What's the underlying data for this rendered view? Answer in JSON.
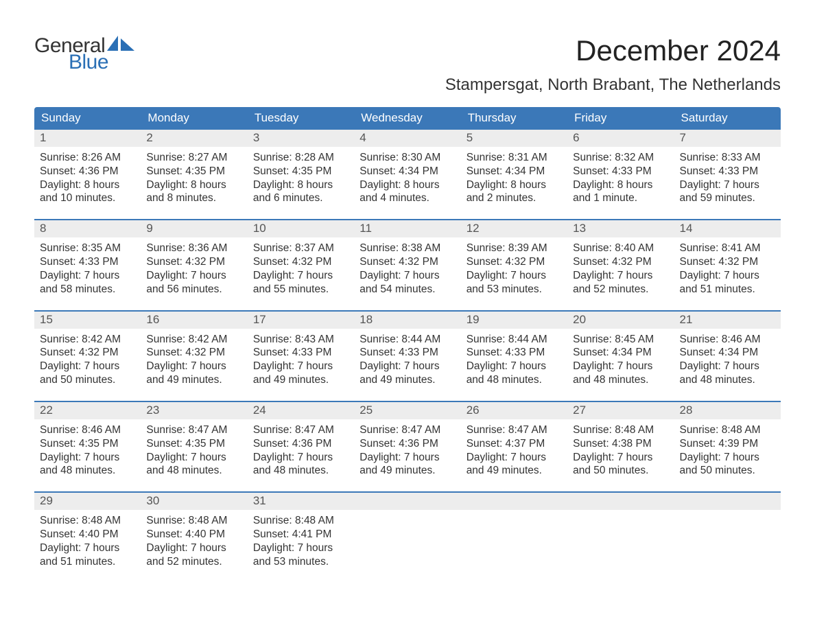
{
  "logo": {
    "text1": "General",
    "text2": "Blue",
    "shape_color": "#2a6fb5"
  },
  "title": "December 2024",
  "location": "Stampersgat, North Brabant, The Netherlands",
  "colors": {
    "header_bg": "#3b78b8",
    "header_text": "#ffffff",
    "daynum_bg": "#ededed",
    "week_divider": "#3b78b8",
    "body_text": "#333333",
    "logo_blue": "#2a6fb5"
  },
  "day_names": [
    "Sunday",
    "Monday",
    "Tuesday",
    "Wednesday",
    "Thursday",
    "Friday",
    "Saturday"
  ],
  "weeks": [
    [
      {
        "n": "1",
        "sunrise": "Sunrise: 8:26 AM",
        "sunset": "Sunset: 4:36 PM",
        "dl1": "Daylight: 8 hours",
        "dl2": "and 10 minutes."
      },
      {
        "n": "2",
        "sunrise": "Sunrise: 8:27 AM",
        "sunset": "Sunset: 4:35 PM",
        "dl1": "Daylight: 8 hours",
        "dl2": "and 8 minutes."
      },
      {
        "n": "3",
        "sunrise": "Sunrise: 8:28 AM",
        "sunset": "Sunset: 4:35 PM",
        "dl1": "Daylight: 8 hours",
        "dl2": "and 6 minutes."
      },
      {
        "n": "4",
        "sunrise": "Sunrise: 8:30 AM",
        "sunset": "Sunset: 4:34 PM",
        "dl1": "Daylight: 8 hours",
        "dl2": "and 4 minutes."
      },
      {
        "n": "5",
        "sunrise": "Sunrise: 8:31 AM",
        "sunset": "Sunset: 4:34 PM",
        "dl1": "Daylight: 8 hours",
        "dl2": "and 2 minutes."
      },
      {
        "n": "6",
        "sunrise": "Sunrise: 8:32 AM",
        "sunset": "Sunset: 4:33 PM",
        "dl1": "Daylight: 8 hours",
        "dl2": "and 1 minute."
      },
      {
        "n": "7",
        "sunrise": "Sunrise: 8:33 AM",
        "sunset": "Sunset: 4:33 PM",
        "dl1": "Daylight: 7 hours",
        "dl2": "and 59 minutes."
      }
    ],
    [
      {
        "n": "8",
        "sunrise": "Sunrise: 8:35 AM",
        "sunset": "Sunset: 4:33 PM",
        "dl1": "Daylight: 7 hours",
        "dl2": "and 58 minutes."
      },
      {
        "n": "9",
        "sunrise": "Sunrise: 8:36 AM",
        "sunset": "Sunset: 4:32 PM",
        "dl1": "Daylight: 7 hours",
        "dl2": "and 56 minutes."
      },
      {
        "n": "10",
        "sunrise": "Sunrise: 8:37 AM",
        "sunset": "Sunset: 4:32 PM",
        "dl1": "Daylight: 7 hours",
        "dl2": "and 55 minutes."
      },
      {
        "n": "11",
        "sunrise": "Sunrise: 8:38 AM",
        "sunset": "Sunset: 4:32 PM",
        "dl1": "Daylight: 7 hours",
        "dl2": "and 54 minutes."
      },
      {
        "n": "12",
        "sunrise": "Sunrise: 8:39 AM",
        "sunset": "Sunset: 4:32 PM",
        "dl1": "Daylight: 7 hours",
        "dl2": "and 53 minutes."
      },
      {
        "n": "13",
        "sunrise": "Sunrise: 8:40 AM",
        "sunset": "Sunset: 4:32 PM",
        "dl1": "Daylight: 7 hours",
        "dl2": "and 52 minutes."
      },
      {
        "n": "14",
        "sunrise": "Sunrise: 8:41 AM",
        "sunset": "Sunset: 4:32 PM",
        "dl1": "Daylight: 7 hours",
        "dl2": "and 51 minutes."
      }
    ],
    [
      {
        "n": "15",
        "sunrise": "Sunrise: 8:42 AM",
        "sunset": "Sunset: 4:32 PM",
        "dl1": "Daylight: 7 hours",
        "dl2": "and 50 minutes."
      },
      {
        "n": "16",
        "sunrise": "Sunrise: 8:42 AM",
        "sunset": "Sunset: 4:32 PM",
        "dl1": "Daylight: 7 hours",
        "dl2": "and 49 minutes."
      },
      {
        "n": "17",
        "sunrise": "Sunrise: 8:43 AM",
        "sunset": "Sunset: 4:33 PM",
        "dl1": "Daylight: 7 hours",
        "dl2": "and 49 minutes."
      },
      {
        "n": "18",
        "sunrise": "Sunrise: 8:44 AM",
        "sunset": "Sunset: 4:33 PM",
        "dl1": "Daylight: 7 hours",
        "dl2": "and 49 minutes."
      },
      {
        "n": "19",
        "sunrise": "Sunrise: 8:44 AM",
        "sunset": "Sunset: 4:33 PM",
        "dl1": "Daylight: 7 hours",
        "dl2": "and 48 minutes."
      },
      {
        "n": "20",
        "sunrise": "Sunrise: 8:45 AM",
        "sunset": "Sunset: 4:34 PM",
        "dl1": "Daylight: 7 hours",
        "dl2": "and 48 minutes."
      },
      {
        "n": "21",
        "sunrise": "Sunrise: 8:46 AM",
        "sunset": "Sunset: 4:34 PM",
        "dl1": "Daylight: 7 hours",
        "dl2": "and 48 minutes."
      }
    ],
    [
      {
        "n": "22",
        "sunrise": "Sunrise: 8:46 AM",
        "sunset": "Sunset: 4:35 PM",
        "dl1": "Daylight: 7 hours",
        "dl2": "and 48 minutes."
      },
      {
        "n": "23",
        "sunrise": "Sunrise: 8:47 AM",
        "sunset": "Sunset: 4:35 PM",
        "dl1": "Daylight: 7 hours",
        "dl2": "and 48 minutes."
      },
      {
        "n": "24",
        "sunrise": "Sunrise: 8:47 AM",
        "sunset": "Sunset: 4:36 PM",
        "dl1": "Daylight: 7 hours",
        "dl2": "and 48 minutes."
      },
      {
        "n": "25",
        "sunrise": "Sunrise: 8:47 AM",
        "sunset": "Sunset: 4:36 PM",
        "dl1": "Daylight: 7 hours",
        "dl2": "and 49 minutes."
      },
      {
        "n": "26",
        "sunrise": "Sunrise: 8:47 AM",
        "sunset": "Sunset: 4:37 PM",
        "dl1": "Daylight: 7 hours",
        "dl2": "and 49 minutes."
      },
      {
        "n": "27",
        "sunrise": "Sunrise: 8:48 AM",
        "sunset": "Sunset: 4:38 PM",
        "dl1": "Daylight: 7 hours",
        "dl2": "and 50 minutes."
      },
      {
        "n": "28",
        "sunrise": "Sunrise: 8:48 AM",
        "sunset": "Sunset: 4:39 PM",
        "dl1": "Daylight: 7 hours",
        "dl2": "and 50 minutes."
      }
    ],
    [
      {
        "n": "29",
        "sunrise": "Sunrise: 8:48 AM",
        "sunset": "Sunset: 4:40 PM",
        "dl1": "Daylight: 7 hours",
        "dl2": "and 51 minutes."
      },
      {
        "n": "30",
        "sunrise": "Sunrise: 8:48 AM",
        "sunset": "Sunset: 4:40 PM",
        "dl1": "Daylight: 7 hours",
        "dl2": "and 52 minutes."
      },
      {
        "n": "31",
        "sunrise": "Sunrise: 8:48 AM",
        "sunset": "Sunset: 4:41 PM",
        "dl1": "Daylight: 7 hours",
        "dl2": "and 53 minutes."
      },
      {
        "n": "",
        "sunrise": "",
        "sunset": "",
        "dl1": "",
        "dl2": "",
        "empty": true
      },
      {
        "n": "",
        "sunrise": "",
        "sunset": "",
        "dl1": "",
        "dl2": "",
        "empty": true
      },
      {
        "n": "",
        "sunrise": "",
        "sunset": "",
        "dl1": "",
        "dl2": "",
        "empty": true
      },
      {
        "n": "",
        "sunrise": "",
        "sunset": "",
        "dl1": "",
        "dl2": "",
        "empty": true
      }
    ]
  ]
}
